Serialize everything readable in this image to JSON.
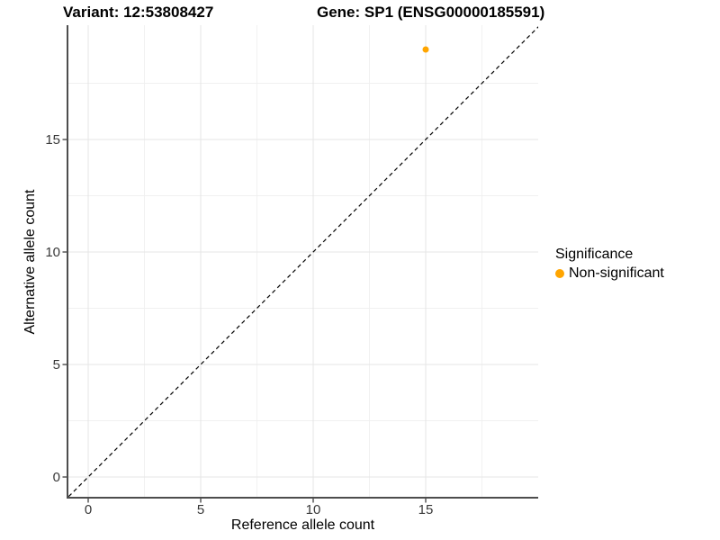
{
  "chart_data": {
    "type": "scatter",
    "title_left": "Variant: 12:53808427",
    "title_right": "Gene: SP1 (ENSG00000185591)",
    "xlabel": "Reference allele count",
    "ylabel": "Alternative allele count",
    "xlim": [
      -0.92,
      20.08
    ],
    "ylim": [
      -0.92,
      20.08
    ],
    "x_ticks": [
      0,
      5,
      10,
      15
    ],
    "y_ticks": [
      0,
      5,
      10,
      15
    ],
    "x_minor_ticks": [
      2.5,
      7.5,
      12.5,
      17.5
    ],
    "y_minor_ticks": [
      2.5,
      7.5,
      12.5,
      17.5
    ],
    "grid": true,
    "points": [
      {
        "x": 15,
        "y": 19,
        "series": "Non-significant",
        "color": "#FFA500",
        "radius": 3.5
      }
    ],
    "reference_line": {
      "kind": "identity",
      "equation": "y = x",
      "style": "dashed",
      "color": "#000000"
    },
    "legend": {
      "title": "Significance",
      "position": "right",
      "entries": [
        {
          "label": "Non-significant",
          "color": "#FFA500",
          "marker": "circle"
        }
      ]
    },
    "colors": {
      "point": "#FFA500",
      "grid_major": "#E6E6E6",
      "grid_minor": "#F0F0F0",
      "axis_line": "#4D4D4D",
      "tick_mark": "#4D4D4D",
      "tick_label": "#383838",
      "background": "#FFFFFF"
    }
  }
}
